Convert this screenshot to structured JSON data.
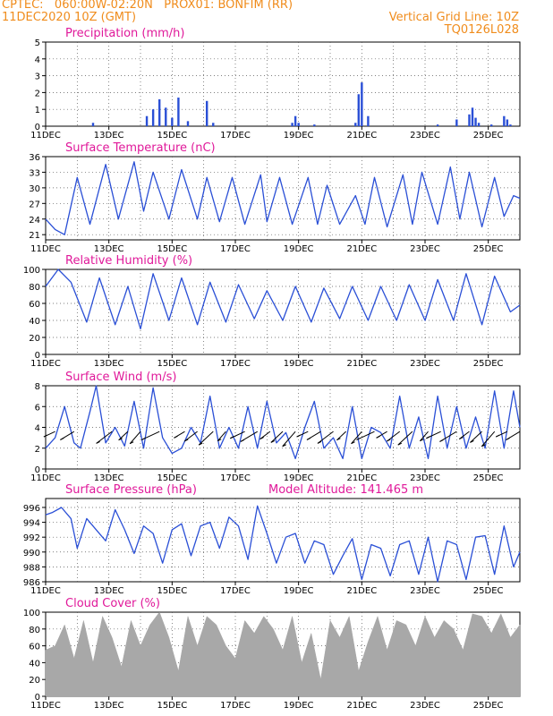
{
  "header": {
    "left_line1": "CPTEC:   060:00W-02:20N   PROX01: BONFIM (RR)",
    "left_line2": "11DEC2020 10Z (GMT)",
    "right_line1": "Vertical Grid Line: 10Z",
    "right_line2": "TQ0126L028"
  },
  "colors": {
    "series": "#2a4fd6",
    "title": "#e0199a",
    "header": "#f08c1c",
    "cloud": "#a8a8a8",
    "wind_barb": "#000000"
  },
  "chart_data": [
    {
      "type": "bar",
      "title": "Precipitation (mm/h)",
      "ylim": [
        0,
        5
      ],
      "yticks": [
        "0",
        "1",
        "2",
        "3",
        "4",
        "5"
      ],
      "xticks": [
        "11DEC",
        "13DEC",
        "15DEC",
        "17DEC",
        "19DEC",
        "21DEC",
        "23DEC",
        "25DEC"
      ],
      "x_start_day": 11,
      "x_end_day": 26,
      "values_days": [
        12.5,
        14.2,
        14.4,
        14.6,
        14.8,
        15.0,
        15.2,
        15.5,
        16.1,
        16.3,
        18.8,
        18.9,
        19.0,
        19.5,
        20.8,
        20.9,
        21.0,
        21.2,
        23.4,
        24.0,
        24.4,
        24.5,
        24.6,
        24.7,
        25.1,
        25.5,
        25.6,
        25.7
      ],
      "values": [
        0.2,
        0.6,
        1.0,
        1.6,
        1.1,
        0.5,
        1.7,
        0.3,
        1.5,
        0.2,
        0.2,
        0.6,
        0.2,
        0.1,
        0.2,
        1.9,
        2.6,
        0.6,
        0.1,
        0.4,
        0.7,
        1.1,
        0.5,
        0.2,
        0.1,
        0.6,
        0.4,
        0.1
      ]
    },
    {
      "type": "line",
      "title": "Surface Temperature (nC)",
      "ylim": [
        20,
        36
      ],
      "yticks": [
        "21",
        "24",
        "27",
        "30",
        "33",
        "36"
      ],
      "xticks": [
        "11DEC",
        "13DEC",
        "15DEC",
        "17DEC",
        "19DEC",
        "21DEC",
        "23DEC",
        "25DEC"
      ],
      "x_start_day": 11,
      "x_end_day": 26,
      "series": [
        {
          "x_days": [
            11.0,
            11.3,
            11.6,
            12.0,
            12.4,
            12.9,
            13.3,
            13.8,
            14.1,
            14.4,
            14.9,
            15.3,
            15.8,
            16.1,
            16.5,
            16.9,
            17.3,
            17.8,
            18.0,
            18.4,
            18.8,
            19.3,
            19.6,
            19.9,
            20.3,
            20.8,
            21.1,
            21.4,
            21.8,
            22.3,
            22.6,
            22.9,
            23.4,
            23.8,
            24.1,
            24.4,
            24.8,
            25.2,
            25.5,
            25.8,
            26.0
          ],
          "values": [
            24.0,
            22.0,
            21.0,
            32.0,
            23.0,
            34.5,
            24.0,
            35.0,
            25.5,
            33.0,
            24.0,
            33.5,
            24.0,
            32.0,
            23.5,
            32.0,
            23.0,
            32.5,
            23.5,
            32.0,
            23.0,
            32.0,
            23.0,
            30.5,
            23.0,
            28.5,
            23.0,
            32.0,
            22.5,
            32.5,
            23.0,
            33.0,
            23.0,
            34.0,
            24.0,
            33.0,
            22.5,
            32.0,
            24.5,
            28.5,
            28.0
          ]
        }
      ]
    },
    {
      "type": "line",
      "title": "Relative Humidity (%)",
      "ylim": [
        0,
        100
      ],
      "yticks": [
        "0",
        "20",
        "40",
        "60",
        "80",
        "100"
      ],
      "xticks": [
        "11DEC",
        "13DEC",
        "15DEC",
        "17DEC",
        "19DEC",
        "21DEC",
        "23DEC",
        "25DEC"
      ],
      "x_start_day": 11,
      "x_end_day": 26,
      "series": [
        {
          "x_days": [
            11.0,
            11.4,
            11.8,
            12.3,
            12.7,
            13.2,
            13.6,
            14.0,
            14.4,
            14.9,
            15.3,
            15.8,
            16.2,
            16.7,
            17.1,
            17.6,
            18.0,
            18.5,
            18.9,
            19.4,
            19.8,
            20.3,
            20.7,
            21.2,
            21.6,
            22.1,
            22.5,
            23.0,
            23.4,
            23.9,
            24.3,
            24.8,
            25.2,
            25.7,
            26.0
          ],
          "values": [
            80,
            100,
            85,
            38,
            90,
            35,
            80,
            30,
            95,
            40,
            90,
            35,
            85,
            38,
            82,
            42,
            75,
            40,
            80,
            38,
            78,
            42,
            80,
            40,
            80,
            40,
            82,
            40,
            88,
            40,
            95,
            35,
            92,
            50,
            58
          ]
        }
      ]
    },
    {
      "type": "line",
      "title": "Surface Wind (m/s)",
      "ylim": [
        0,
        8
      ],
      "yticks": [
        "0",
        "2",
        "4",
        "6",
        "8"
      ],
      "xticks": [
        "11DEC",
        "13DEC",
        "15DEC",
        "17DEC",
        "19DEC",
        "21DEC",
        "23DEC",
        "25DEC"
      ],
      "x_start_day": 11,
      "x_end_day": 26,
      "series": [
        {
          "x_days": [
            11.0,
            11.3,
            11.6,
            11.9,
            12.1,
            12.4,
            12.6,
            12.9,
            13.2,
            13.5,
            13.8,
            14.1,
            14.4,
            14.7,
            15.0,
            15.3,
            15.6,
            15.9,
            16.2,
            16.5,
            16.8,
            17.1,
            17.4,
            17.7,
            18.0,
            18.3,
            18.6,
            18.9,
            19.2,
            19.5,
            19.8,
            20.1,
            20.4,
            20.7,
            21.0,
            21.3,
            21.6,
            21.9,
            22.2,
            22.5,
            22.8,
            23.1,
            23.4,
            23.7,
            24.0,
            24.3,
            24.6,
            24.9,
            25.2,
            25.5,
            25.8,
            26.0
          ],
          "values": [
            2.0,
            3.0,
            6.0,
            2.5,
            2.0,
            5.5,
            8.0,
            2.5,
            4.0,
            2.2,
            6.5,
            2.0,
            7.8,
            3.0,
            1.5,
            2.0,
            4.0,
            2.5,
            7.0,
            2.0,
            4.0,
            2.0,
            6.0,
            2.0,
            6.5,
            2.5,
            3.5,
            1.0,
            4.0,
            6.5,
            2.0,
            3.0,
            1.0,
            6.0,
            1.0,
            4.0,
            3.5,
            2.0,
            7.0,
            2.0,
            5.0,
            1.0,
            7.0,
            2.0,
            6.0,
            2.0,
            5.0,
            2.0,
            7.5,
            2.0,
            7.5,
            4.0
          ]
        }
      ],
      "barb_days": [
        11.3,
        11.9,
        13.1,
        13.6,
        14.0,
        14.6,
        15.4,
        15.8,
        16.3,
        16.7,
        17.3,
        17.7,
        18.1,
        18.5,
        18.9,
        19.3,
        19.7,
        20.1,
        20.5,
        21.0,
        21.4,
        21.8,
        22.2,
        22.6,
        23.1,
        23.5,
        24.0,
        24.4,
        24.8,
        25.2,
        25.6,
        26.0
      ]
    },
    {
      "type": "line",
      "title": "Surface Pressure (hPa)",
      "annotation": "Model Altitude: 141.465  m",
      "ylim": [
        986,
        997.2
      ],
      "yticks": [
        "986",
        "988",
        "990",
        "992",
        "994",
        "996"
      ],
      "xticks": [
        "11DEC",
        "13DEC",
        "15DEC",
        "17DEC",
        "19DEC",
        "21DEC",
        "23DEC",
        "25DEC"
      ],
      "x_start_day": 11,
      "x_end_day": 26,
      "series": [
        {
          "x_days": [
            11.0,
            11.2,
            11.5,
            11.8,
            12.0,
            12.3,
            12.6,
            12.9,
            13.2,
            13.5,
            13.8,
            14.1,
            14.4,
            14.7,
            15.0,
            15.3,
            15.6,
            15.9,
            16.2,
            16.5,
            16.8,
            17.1,
            17.4,
            17.7,
            18.0,
            18.3,
            18.6,
            18.9,
            19.2,
            19.5,
            19.8,
            20.1,
            20.4,
            20.7,
            21.0,
            21.3,
            21.6,
            21.9,
            22.2,
            22.5,
            22.8,
            23.1,
            23.4,
            23.7,
            24.0,
            24.3,
            24.6,
            24.9,
            25.2,
            25.5,
            25.8,
            26.0
          ],
          "values": [
            995.0,
            995.3,
            996.0,
            994.5,
            990.5,
            994.5,
            993.0,
            991.5,
            995.7,
            993.0,
            989.8,
            993.5,
            992.5,
            988.5,
            993.0,
            993.8,
            989.5,
            993.5,
            994.0,
            990.5,
            994.7,
            993.5,
            989.0,
            996.2,
            992.5,
            988.5,
            992.0,
            992.5,
            988.5,
            991.5,
            991.0,
            987.0,
            989.5,
            991.8,
            986.3,
            991.0,
            990.5,
            986.8,
            991.0,
            991.5,
            987.0,
            992.0,
            985.9,
            991.5,
            991.0,
            986.3,
            992.0,
            992.2,
            987.0,
            993.5,
            988.0,
            990.0
          ]
        }
      ]
    },
    {
      "type": "area",
      "title": "Cloud Cover (%)",
      "ylim": [
        0,
        100
      ],
      "yticks": [
        "0",
        "20",
        "40",
        "60",
        "80",
        "100"
      ],
      "xticks": [
        "11DEC",
        "13DEC",
        "15DEC",
        "17DEC",
        "19DEC",
        "21DEC",
        "23DEC",
        "25DEC"
      ],
      "x_start_day": 11,
      "x_end_day": 26,
      "x_days": [
        11.0,
        11.3,
        11.6,
        11.9,
        12.2,
        12.5,
        12.8,
        13.1,
        13.4,
        13.7,
        14.0,
        14.3,
        14.6,
        14.9,
        15.2,
        15.5,
        15.8,
        16.1,
        16.4,
        16.7,
        17.0,
        17.3,
        17.6,
        17.9,
        18.2,
        18.5,
        18.8,
        19.1,
        19.4,
        19.7,
        20.0,
        20.3,
        20.6,
        20.9,
        21.2,
        21.5,
        21.8,
        22.1,
        22.4,
        22.7,
        23.0,
        23.3,
        23.6,
        23.9,
        24.2,
        24.5,
        24.8,
        25.1,
        25.4,
        25.7,
        26.0
      ],
      "values": [
        55,
        60,
        85,
        45,
        90,
        40,
        95,
        70,
        35,
        90,
        60,
        85,
        100,
        70,
        30,
        95,
        60,
        95,
        85,
        60,
        45,
        90,
        75,
        95,
        80,
        55,
        95,
        40,
        75,
        20,
        90,
        70,
        95,
        30,
        65,
        95,
        55,
        90,
        85,
        60,
        95,
        70,
        90,
        80,
        55,
        98,
        95,
        75,
        98,
        70,
        85
      ]
    }
  ]
}
